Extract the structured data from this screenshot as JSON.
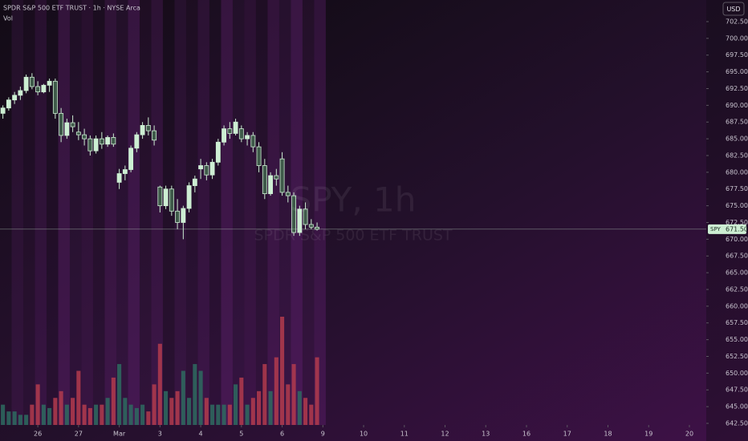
{
  "chart_data": {
    "type": "candlestick",
    "title": "SPDR S&P 500 ETF TRUST · 1h · NYSE Arca",
    "volume_label": "Vol",
    "watermark": {
      "symbol": "SPY, 1h",
      "name": "SPDR S&P 500 ETF TRUST"
    },
    "currency": "USD",
    "open": [
      688.8,
      689.6,
      690.8,
      691.5,
      692.2,
      694.2,
      692.8,
      692.0,
      693.0,
      693.6,
      688.8,
      685.5,
      687.4,
      686.0,
      685.6,
      685.0,
      683.2,
      685.0,
      684.2,
      685.2,
      678.5,
      679.8,
      680.4,
      683.6,
      685.6,
      687.0,
      686.2,
      677.8,
      675.0,
      677.5,
      674.2,
      672.5,
      674.6,
      678.0,
      680.5,
      681.0,
      679.6,
      681.5,
      684.5,
      686.5,
      685.8,
      686.5,
      685.0,
      685.5,
      683.8,
      681.0,
      676.8,
      679.5,
      682.0,
      677.0,
      676.5,
      671.0,
      674.5,
      672.2,
      671.8
    ],
    "high": [
      690.0,
      691.2,
      692.0,
      692.8,
      694.6,
      694.8,
      693.6,
      693.2,
      694.0,
      694.0,
      689.6,
      688.0,
      688.5,
      687.5,
      686.5,
      685.5,
      685.5,
      686.0,
      685.5,
      685.8,
      680.5,
      681.0,
      684.0,
      686.0,
      687.5,
      688.2,
      687.0,
      678.0,
      678.0,
      678.0,
      676.0,
      675.0,
      678.5,
      679.5,
      682.0,
      681.5,
      682.0,
      685.0,
      687.0,
      687.5,
      688.0,
      687.0,
      686.0,
      686.0,
      684.5,
      682.0,
      680.0,
      680.5,
      683.0,
      678.0,
      677.0,
      675.0,
      675.5,
      673.0,
      672.5
    ],
    "low": [
      688.0,
      689.2,
      690.2,
      690.8,
      691.8,
      692.4,
      691.5,
      691.8,
      692.0,
      688.0,
      684.5,
      685.0,
      686.0,
      684.8,
      684.0,
      682.5,
      682.8,
      683.5,
      683.8,
      683.8,
      677.5,
      678.8,
      680.0,
      683.0,
      685.0,
      685.5,
      684.0,
      674.0,
      674.5,
      673.5,
      671.5,
      670.0,
      674.0,
      677.0,
      679.0,
      678.8,
      679.0,
      681.0,
      684.0,
      685.0,
      685.5,
      684.5,
      684.0,
      683.0,
      680.0,
      676.0,
      676.5,
      678.0,
      676.5,
      675.5,
      670.5,
      670.5,
      671.5,
      671.5,
      671.3
    ],
    "close": [
      689.6,
      690.8,
      691.5,
      692.2,
      694.2,
      692.8,
      692.0,
      693.0,
      693.6,
      688.8,
      685.5,
      687.4,
      686.8,
      685.6,
      685.0,
      683.2,
      685.0,
      684.2,
      685.2,
      684.2,
      679.8,
      680.4,
      683.6,
      685.6,
      687.0,
      686.2,
      684.8,
      675.0,
      677.5,
      674.2,
      672.5,
      674.6,
      678.0,
      679.0,
      681.0,
      679.6,
      681.5,
      684.5,
      686.5,
      685.8,
      687.5,
      685.0,
      685.5,
      683.8,
      681.0,
      676.8,
      679.5,
      679.0,
      677.0,
      676.5,
      671.0,
      674.5,
      672.2,
      671.8,
      671.5
    ],
    "volume": [
      3,
      2,
      2,
      1.5,
      1.5,
      3,
      6,
      3,
      2.5,
      4,
      5,
      3,
      4,
      8,
      3,
      2.5,
      3,
      3,
      4,
      7,
      9,
      4,
      3,
      2.5,
      3,
      2,
      6,
      12,
      5,
      4,
      5,
      8,
      4,
      9,
      8,
      4,
      3,
      3,
      3,
      3,
      6,
      7,
      3,
      4,
      5,
      9,
      5,
      10,
      16,
      6,
      9,
      5,
      4,
      3,
      10
    ],
    "up_color": "#cdeed3",
    "down_color": "#3f5a4a",
    "volume_up_color": "#2e6b60",
    "volume_down_color": "#b33b4e",
    "price_label": {
      "symbol": "SPY",
      "value": 671.5,
      "label": "671.50"
    },
    "ylim": [
      642.26,
      705.73
    ],
    "yticks": [
      {
        "value": 642.5,
        "label": "642.50"
      },
      {
        "value": 645,
        "label": "645.00"
      },
      {
        "value": 647.5,
        "label": "647.50"
      },
      {
        "value": 650,
        "label": "650.00"
      },
      {
        "value": 652.5,
        "label": "652.50"
      },
      {
        "value": 655,
        "label": "655.00"
      },
      {
        "value": 657.5,
        "label": "657.50"
      },
      {
        "value": 660,
        "label": "660.00"
      },
      {
        "value": 662.5,
        "label": "662.50"
      },
      {
        "value": 665,
        "label": "665.00"
      },
      {
        "value": 667.5,
        "label": "667.50"
      },
      {
        "value": 670,
        "label": "670.00"
      },
      {
        "value": 672.5,
        "label": "672.50"
      },
      {
        "value": 675,
        "label": "675.00"
      },
      {
        "value": 677.5,
        "label": "677.50"
      },
      {
        "value": 680,
        "label": "680.00"
      },
      {
        "value": 682.5,
        "label": "682.50"
      },
      {
        "value": 685,
        "label": "685.00"
      },
      {
        "value": 687.5,
        "label": "687.50"
      },
      {
        "value": 690,
        "label": "690.00"
      },
      {
        "value": 692.5,
        "label": "692.50"
      },
      {
        "value": 695,
        "label": "695.00"
      },
      {
        "value": 697.5,
        "label": "697.50"
      },
      {
        "value": 700,
        "label": "700.00"
      },
      {
        "value": 702.5,
        "label": "702.50"
      }
    ],
    "xlim": [
      -0.5,
      120.9
    ],
    "xticks": [
      {
        "value": 6,
        "label": "26"
      },
      {
        "value": 13,
        "label": "27"
      },
      {
        "value": 20,
        "label": "Mar"
      },
      {
        "value": 27,
        "label": "3"
      },
      {
        "value": 34,
        "label": "4"
      },
      {
        "value": 41,
        "label": "5"
      },
      {
        "value": 48,
        "label": "6"
      },
      {
        "value": 55,
        "label": "9"
      },
      {
        "value": 62,
        "label": "10"
      },
      {
        "value": 69,
        "label": "11"
      },
      {
        "value": 76,
        "label": "12"
      },
      {
        "value": 83,
        "label": "13"
      },
      {
        "value": 90,
        "label": "16"
      },
      {
        "value": 97,
        "label": "17"
      },
      {
        "value": 104,
        "label": "18"
      },
      {
        "value": 111,
        "label": "19"
      },
      {
        "value": 118,
        "label": "20"
      }
    ]
  }
}
